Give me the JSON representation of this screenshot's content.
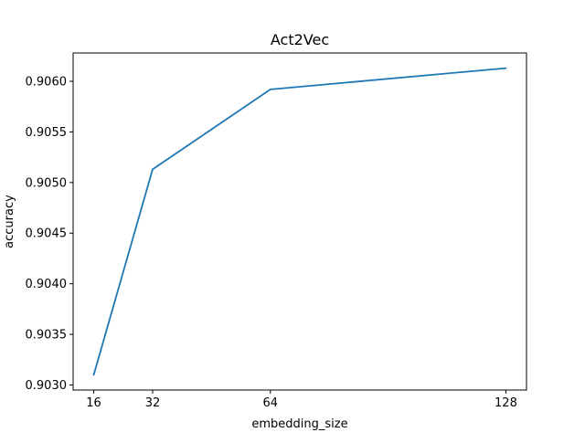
{
  "chart_data": {
    "type": "line",
    "title": "Act2Vec",
    "xlabel": "embedding_size",
    "ylabel": "accuracy",
    "x": [
      16,
      32,
      64,
      128
    ],
    "series": [
      {
        "values": [
          0.9031,
          0.90513,
          0.90592,
          0.90613
        ]
      }
    ],
    "xticks": [
      "16",
      "32",
      "64",
      "128"
    ],
    "yticks": [
      "0.9030",
      "0.9035",
      "0.9040",
      "0.9045",
      "0.9050",
      "0.9055",
      "0.9060"
    ],
    "xlim": [
      10.4,
      133.6
    ],
    "ylim": [
      0.90295,
      0.90628
    ],
    "grid": false,
    "line_color": "#1f77b4"
  }
}
